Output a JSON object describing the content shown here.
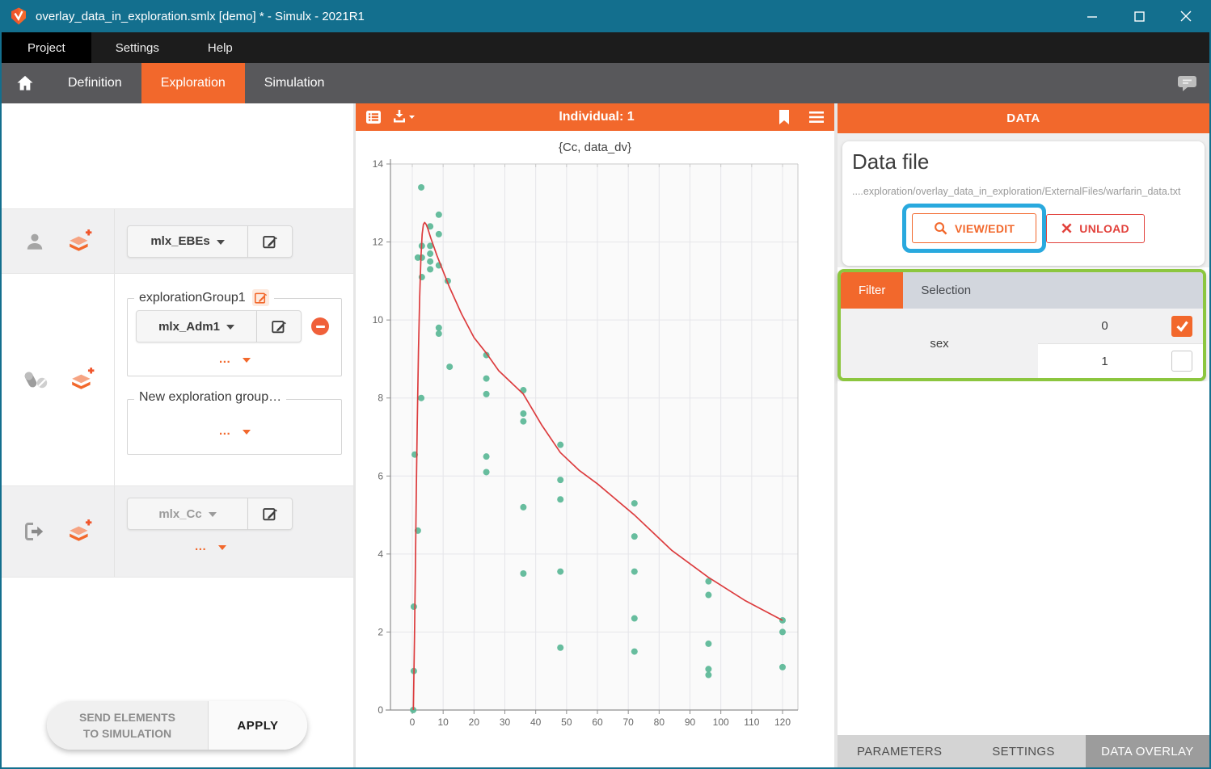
{
  "window": {
    "title": "overlay_data_in_exploration.smlx [demo] * - Simulx - 2021R1"
  },
  "menu": {
    "items": [
      "Project",
      "Settings",
      "Help"
    ]
  },
  "nav": {
    "tabs": [
      {
        "label": "Definition",
        "active": false
      },
      {
        "label": "Exploration",
        "active": true
      },
      {
        "label": "Simulation",
        "active": false
      }
    ]
  },
  "left_panel": {
    "individual_row": {
      "element_button": "mlx_EBEs"
    },
    "treatment_row": {
      "group_box_title": "explorationGroup1",
      "element_button": "mlx_Adm1",
      "more_label": "…",
      "new_group_title": "New exploration group…",
      "new_group_more_label": "…"
    },
    "output_row": {
      "element_button": "mlx_Cc",
      "more_label": "…"
    },
    "send_button": {
      "line1": "SEND ELEMENTS",
      "line2": "TO SIMULATION"
    },
    "apply_button": "APPLY"
  },
  "chart_panel": {
    "header_title": "Individual: 1"
  },
  "chart_data": {
    "type": "scatter",
    "title": "{Cc, data_dv}",
    "xlabel": "",
    "ylabel": "",
    "xlim": [
      -7,
      125
    ],
    "ylim": [
      0,
      14
    ],
    "xticks": [
      0,
      10,
      20,
      30,
      40,
      50,
      60,
      70,
      80,
      90,
      100,
      110,
      120
    ],
    "yticks": [
      0,
      2,
      4,
      6,
      8,
      10,
      12,
      14
    ],
    "grid": true,
    "legend": "none",
    "series": [
      {
        "name": "data_dv (overlaid observed data)",
        "type": "scatter",
        "color": "#56b694",
        "points": [
          [
            0.3,
            0
          ],
          [
            0.5,
            1.0
          ],
          [
            0.5,
            2.65
          ],
          [
            0.8,
            6.55
          ],
          [
            1.8,
            4.6
          ],
          [
            1.8,
            11.6
          ],
          [
            2.9,
            8.0
          ],
          [
            2.9,
            13.4
          ],
          [
            3.1,
            11.1
          ],
          [
            3.1,
            11.6
          ],
          [
            3.1,
            11.9
          ],
          [
            5.8,
            11.3
          ],
          [
            5.8,
            11.5
          ],
          [
            5.8,
            11.7
          ],
          [
            5.8,
            11.9
          ],
          [
            5.8,
            12.4
          ],
          [
            8.6,
            9.65
          ],
          [
            8.6,
            9.8
          ],
          [
            8.6,
            11.4
          ],
          [
            8.6,
            12.2
          ],
          [
            8.6,
            12.7
          ],
          [
            11.5,
            11.0
          ],
          [
            12.1,
            8.8
          ],
          [
            24,
            6.1
          ],
          [
            24,
            6.5
          ],
          [
            24,
            8.1
          ],
          [
            24,
            8.5
          ],
          [
            24,
            9.1
          ],
          [
            36,
            3.5
          ],
          [
            36,
            5.2
          ],
          [
            36,
            7.4
          ],
          [
            36,
            7.6
          ],
          [
            36,
            8.2
          ],
          [
            48,
            1.6
          ],
          [
            48,
            3.55
          ],
          [
            48,
            5.4
          ],
          [
            48,
            5.9
          ],
          [
            48,
            6.8
          ],
          [
            72,
            1.5
          ],
          [
            72,
            2.35
          ],
          [
            72,
            3.55
          ],
          [
            72,
            4.45
          ],
          [
            72,
            5.3
          ],
          [
            96,
            0.9
          ],
          [
            96,
            1.05
          ],
          [
            96,
            1.7
          ],
          [
            96,
            2.95
          ],
          [
            96,
            3.3
          ],
          [
            120,
            1.1
          ],
          [
            120,
            2.0
          ],
          [
            120,
            2.3
          ]
        ]
      },
      {
        "name": "Cc (simulated individual 1)",
        "type": "line",
        "color": "#dc3c3e",
        "points": [
          [
            0.35,
            0
          ],
          [
            0.7,
            1.8
          ],
          [
            1.0,
            3.6
          ],
          [
            1.3,
            5.6
          ],
          [
            1.6,
            7.3
          ],
          [
            2.0,
            9.2
          ],
          [
            2.4,
            10.6
          ],
          [
            2.8,
            11.6
          ],
          [
            3.2,
            12.2
          ],
          [
            3.6,
            12.45
          ],
          [
            4.0,
            12.5
          ],
          [
            4.5,
            12.45
          ],
          [
            5,
            12.35
          ],
          [
            6,
            12.1
          ],
          [
            8,
            11.65
          ],
          [
            10,
            11.25
          ],
          [
            12,
            10.85
          ],
          [
            14,
            10.5
          ],
          [
            16,
            10.15
          ],
          [
            18,
            9.85
          ],
          [
            20,
            9.55
          ],
          [
            24,
            9.15
          ],
          [
            28,
            8.7
          ],
          [
            32,
            8.4
          ],
          [
            36,
            8.1
          ],
          [
            42,
            7.3
          ],
          [
            48,
            6.6
          ],
          [
            54,
            6.15
          ],
          [
            60,
            5.8
          ],
          [
            66,
            5.4
          ],
          [
            72,
            5.0
          ],
          [
            78,
            4.55
          ],
          [
            84,
            4.1
          ],
          [
            90,
            3.75
          ],
          [
            96,
            3.4
          ],
          [
            102,
            3.1
          ],
          [
            108,
            2.8
          ],
          [
            114,
            2.55
          ],
          [
            120,
            2.3
          ]
        ]
      }
    ]
  },
  "right_panel": {
    "header": "DATA",
    "data_file": {
      "heading": "Data file",
      "path": "....exploration/overlay_data_in_exploration/ExternalFiles/warfarin_data.txt",
      "view_edit_button": "VIEW/EDIT",
      "unload_button": "UNLOAD"
    },
    "filter": {
      "tabs": [
        {
          "label": "Filter",
          "active": true
        },
        {
          "label": "Selection",
          "active": false
        }
      ],
      "rows": [
        {
          "name": "sex",
          "values": [
            {
              "value": "0",
              "checked": true
            },
            {
              "value": "1",
              "checked": false
            }
          ]
        }
      ]
    },
    "bottom_tabs": [
      {
        "label": "PARAMETERS",
        "active": false
      },
      {
        "label": "SETTINGS",
        "active": false
      },
      {
        "label": "DATA OVERLAY",
        "active": true
      }
    ]
  },
  "colors": {
    "title_teal": "#136f8e",
    "accent_orange": "#f2682c",
    "highlight_blue": "#29a9de",
    "highlight_green": "#8cc63f",
    "scatter_green": "#56b694",
    "line_red": "#dc3c3e",
    "unload_red": "#e2423c"
  }
}
